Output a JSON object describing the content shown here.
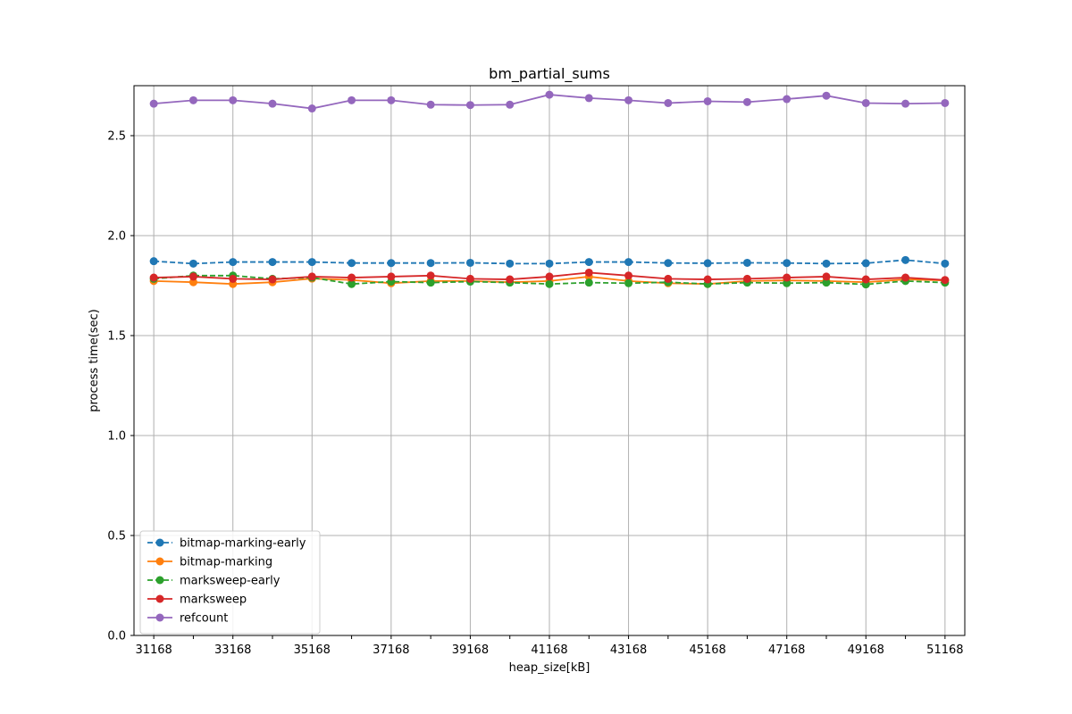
{
  "chart_data": {
    "type": "line",
    "title": "bm_partial_sums",
    "xlabel": "heap_size[kB]",
    "ylabel": "process time(sec)",
    "x": [
      31168,
      32168,
      33168,
      34168,
      35168,
      36168,
      37168,
      38168,
      39168,
      40168,
      41168,
      42168,
      43168,
      44168,
      45168,
      46168,
      47168,
      48168,
      49168,
      50168,
      51168
    ],
    "xlim": [
      30668,
      51668
    ],
    "ylim": [
      0.0,
      2.75
    ],
    "x_ticks": [
      31168,
      32168,
      33168,
      34168,
      35168,
      36168,
      37168,
      38168,
      39168,
      40168,
      41168,
      42168,
      43168,
      44168,
      45168,
      46168,
      47168,
      48168,
      49168,
      50168,
      51168
    ],
    "x_tick_labels": [
      "31168",
      "",
      "33168",
      "",
      "35168",
      "",
      "37168",
      "",
      "39168",
      "",
      "41168",
      "",
      "43168",
      "",
      "45168",
      "",
      "47168",
      "",
      "49168",
      "",
      "51168"
    ],
    "y_ticks": [
      0.0,
      0.5,
      1.0,
      1.5,
      2.0,
      2.5
    ],
    "y_tick_labels": [
      "0.0",
      "0.5",
      "1.0",
      "1.5",
      "2.0",
      "2.5"
    ],
    "grid": true,
    "legend_position": "lower-left",
    "series": [
      {
        "name": "bitmap-marking-early",
        "color": "#1f77b4",
        "dashed": true,
        "values": [
          1.872,
          1.86,
          1.868,
          1.868,
          1.868,
          1.863,
          1.863,
          1.863,
          1.864,
          1.86,
          1.86,
          1.868,
          1.868,
          1.863,
          1.862,
          1.864,
          1.863,
          1.86,
          1.862,
          1.878,
          1.86
        ]
      },
      {
        "name": "bitmap-marking",
        "color": "#ff7f0e",
        "dashed": false,
        "values": [
          1.773,
          1.767,
          1.758,
          1.767,
          1.785,
          1.778,
          1.762,
          1.773,
          1.773,
          1.767,
          1.773,
          1.795,
          1.773,
          1.762,
          1.758,
          1.773,
          1.776,
          1.773,
          1.767,
          1.781,
          1.776
        ]
      },
      {
        "name": "marksweep-early",
        "color": "#2ca02c",
        "dashed": true,
        "values": [
          1.784,
          1.8,
          1.8,
          1.784,
          1.79,
          1.758,
          1.77,
          1.765,
          1.77,
          1.765,
          1.758,
          1.765,
          1.762,
          1.767,
          1.758,
          1.765,
          1.762,
          1.765,
          1.756,
          1.773,
          1.765
        ]
      },
      {
        "name": "marksweep",
        "color": "#d62728",
        "dashed": false,
        "values": [
          1.79,
          1.795,
          1.784,
          1.781,
          1.795,
          1.79,
          1.795,
          1.8,
          1.784,
          1.781,
          1.795,
          1.815,
          1.8,
          1.784,
          1.781,
          1.784,
          1.79,
          1.795,
          1.781,
          1.79,
          1.778
        ]
      },
      {
        "name": "refcount",
        "color": "#9467bd",
        "dashed": false,
        "values": [
          2.66,
          2.677,
          2.677,
          2.66,
          2.636,
          2.677,
          2.677,
          2.655,
          2.653,
          2.655,
          2.705,
          2.688,
          2.677,
          2.663,
          2.672,
          2.668,
          2.683,
          2.7,
          2.663,
          2.66,
          2.663
        ]
      }
    ]
  }
}
